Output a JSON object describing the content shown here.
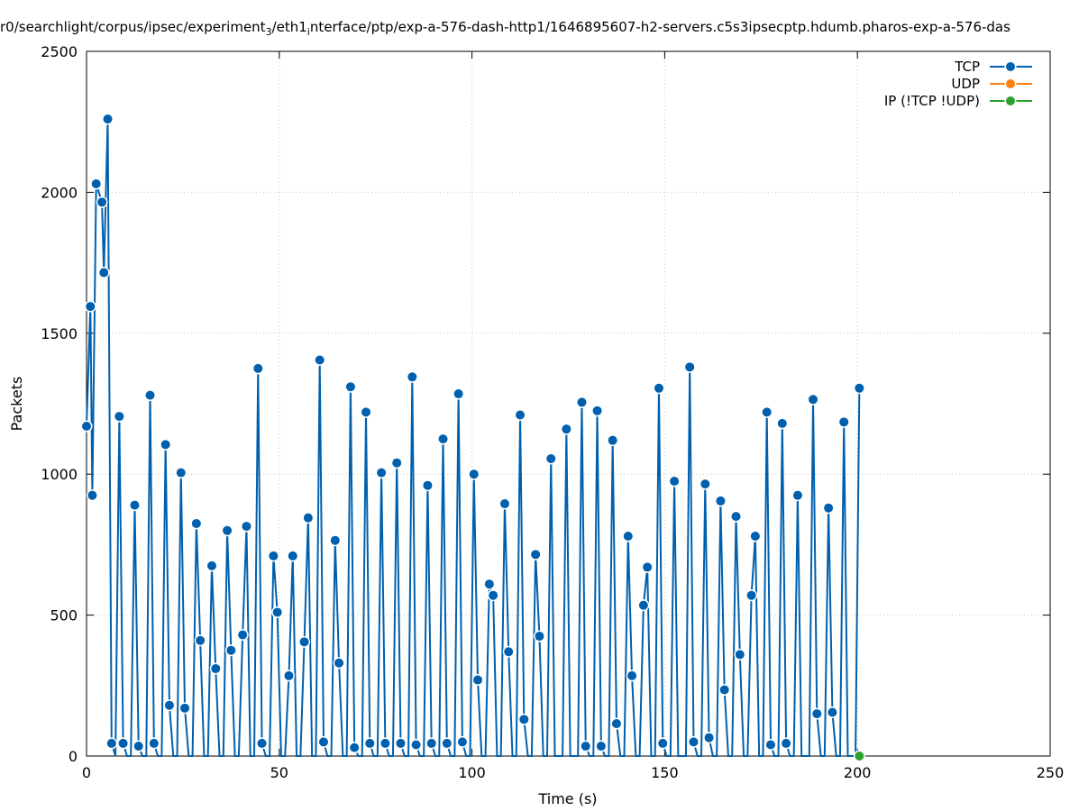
{
  "chart_data": {
    "type": "line",
    "title": "r0/searchlight/corpus/ipsec/experiment_3/eth1_interface/ptp/exp-a-576-dash-http1/1646895607-h2-servers.c5s3ipsecptp.hdumb.pharos-exp-a-576-das",
    "title_parts": {
      "a": "r0/searchlight/corpus/ipsec/experiment",
      "sub1": "3",
      "b": "/eth1",
      "sub2": "i",
      "c": "nterface/ptp/exp-a-576-dash-http1/1646895607-h2-servers.c5s3ipsecptp.hdumb.pharos-exp-a-576-das"
    },
    "xlabel": "Time (s)",
    "ylabel": "Packets",
    "xlim": [
      0,
      250
    ],
    "ylim": [
      0,
      2500
    ],
    "xticks": [
      "0",
      "50",
      "100",
      "150",
      "200",
      "250"
    ],
    "yticks": [
      "0",
      "500",
      "1000",
      "1500",
      "2000",
      "2500"
    ],
    "grid": true,
    "legend_position": "top-right",
    "series": [
      {
        "name": "TCP",
        "color": "#0060ad",
        "points": [
          [
            0,
            1170
          ],
          [
            1,
            1595
          ],
          [
            1.5,
            925
          ],
          [
            2.5,
            2030
          ],
          [
            4,
            1965
          ],
          [
            4.5,
            1715
          ],
          [
            5.5,
            2260
          ],
          [
            6.5,
            45
          ],
          [
            8.5,
            1205
          ],
          [
            9.5,
            45
          ],
          [
            12.5,
            890
          ],
          [
            13.5,
            35
          ],
          [
            16.5,
            1280
          ],
          [
            17.5,
            45
          ],
          [
            20.5,
            1105
          ],
          [
            21.5,
            180
          ],
          [
            24.5,
            1005
          ],
          [
            25.5,
            170
          ],
          [
            28.5,
            825
          ],
          [
            29.5,
            410
          ],
          [
            32.5,
            675
          ],
          [
            33.5,
            310
          ],
          [
            36.5,
            800
          ],
          [
            37.5,
            375
          ],
          [
            40.5,
            430
          ],
          [
            41.5,
            815
          ],
          [
            44.5,
            1375
          ],
          [
            45.5,
            45
          ],
          [
            48.5,
            710
          ],
          [
            49.5,
            510
          ],
          [
            52.5,
            285
          ],
          [
            53.5,
            710
          ],
          [
            56.5,
            405
          ],
          [
            57.5,
            845
          ],
          [
            60.5,
            1405
          ],
          [
            61.5,
            50
          ],
          [
            64.5,
            765
          ],
          [
            65.5,
            330
          ],
          [
            68.5,
            1310
          ],
          [
            69.5,
            30
          ],
          [
            72.5,
            1220
          ],
          [
            73.5,
            45
          ],
          [
            76.5,
            1005
          ],
          [
            77.5,
            45
          ],
          [
            80.5,
            1040
          ],
          [
            81.5,
            45
          ],
          [
            84.5,
            1345
          ],
          [
            85.5,
            40
          ],
          [
            88.5,
            960
          ],
          [
            89.5,
            45
          ],
          [
            92.5,
            1125
          ],
          [
            93.5,
            45
          ],
          [
            96.5,
            1285
          ],
          [
            97.5,
            50
          ],
          [
            100.5,
            1000
          ],
          [
            101.5,
            270
          ],
          [
            104.5,
            610
          ],
          [
            105.5,
            570
          ],
          [
            108.5,
            895
          ],
          [
            109.5,
            370
          ],
          [
            112.5,
            1210
          ],
          [
            113.5,
            130
          ],
          [
            116.5,
            715
          ],
          [
            117.5,
            425
          ],
          [
            120.5,
            1055
          ],
          [
            124.5,
            1160
          ],
          [
            128.5,
            1255
          ],
          [
            129.5,
            35
          ],
          [
            132.5,
            1225
          ],
          [
            133.5,
            35
          ],
          [
            136.5,
            1120
          ],
          [
            137.5,
            115
          ],
          [
            140.5,
            780
          ],
          [
            141.5,
            285
          ],
          [
            144.5,
            535
          ],
          [
            145.5,
            670
          ],
          [
            148.5,
            1305
          ],
          [
            149.5,
            45
          ],
          [
            152.5,
            975
          ],
          [
            156.5,
            1380
          ],
          [
            157.5,
            50
          ],
          [
            160.5,
            965
          ],
          [
            161.5,
            65
          ],
          [
            164.5,
            905
          ],
          [
            165.5,
            235
          ],
          [
            168.5,
            850
          ],
          [
            169.5,
            360
          ],
          [
            172.5,
            570
          ],
          [
            173.5,
            780
          ],
          [
            176.5,
            1220
          ],
          [
            177.5,
            40
          ],
          [
            180.5,
            1180
          ],
          [
            181.5,
            45
          ],
          [
            184.5,
            925
          ],
          [
            188.5,
            1265
          ],
          [
            189.5,
            150
          ],
          [
            192.5,
            880
          ],
          [
            193.5,
            155
          ],
          [
            196.5,
            1185
          ],
          [
            200.5,
            1305
          ]
        ]
      },
      {
        "name": "UDP",
        "color": "#ff7f0e",
        "points": []
      },
      {
        "name": "IP (!TCP  !UDP)",
        "color": "#2ca02c",
        "points": [
          [
            200.5,
            0
          ]
        ]
      }
    ]
  }
}
